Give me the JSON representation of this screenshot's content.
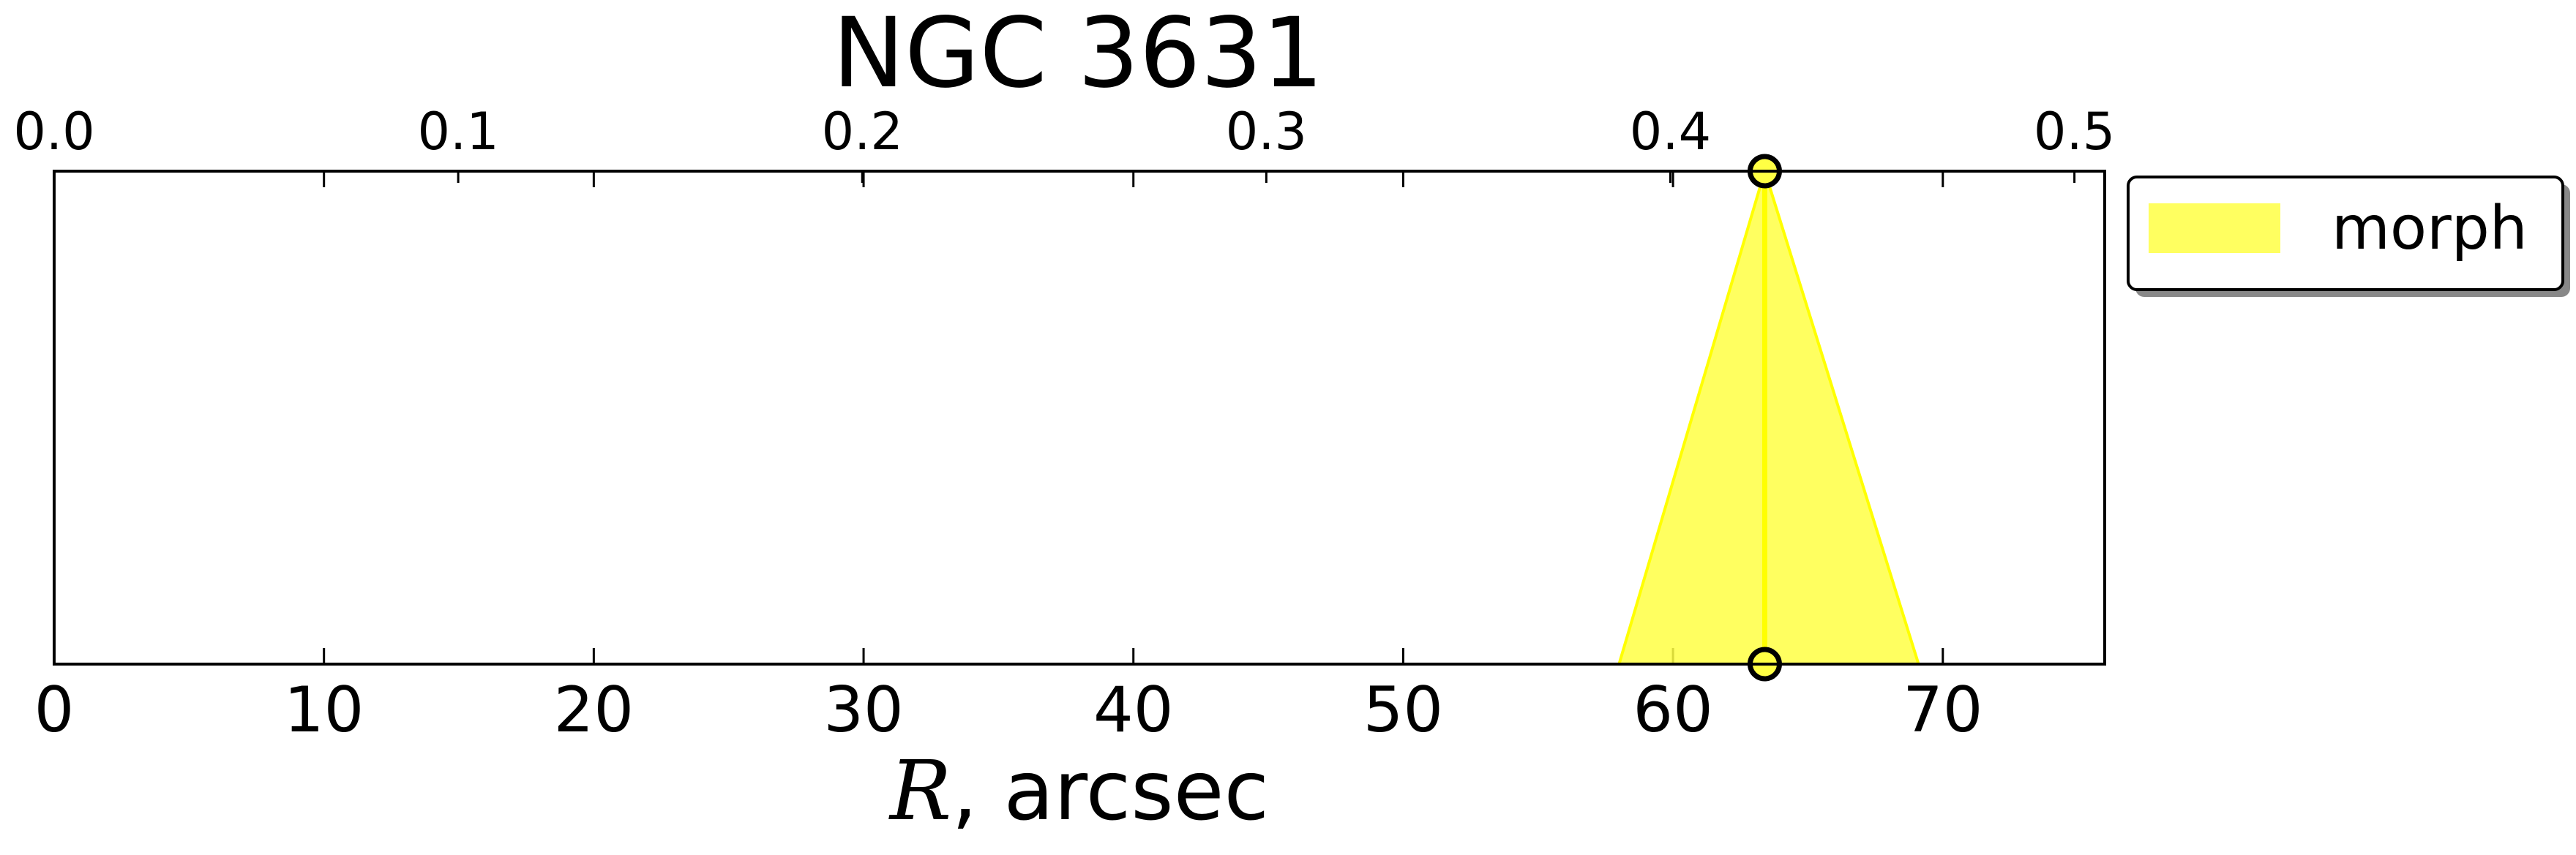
{
  "chart_data": {
    "type": "area",
    "title": "NGC 3631",
    "xlabel_var": "R",
    "xlabel_unit": ", arcsec",
    "xlim": [
      0,
      76
    ],
    "x_ticks": [
      0,
      10,
      20,
      30,
      40,
      50,
      60,
      70
    ],
    "x_tick_labels": [
      "0",
      "10",
      "20",
      "30",
      "40",
      "50",
      "60",
      "70"
    ],
    "top_xlim": [
      0.0,
      0.5075
    ],
    "top_ticks": [
      0.0,
      0.1,
      0.2,
      0.3,
      0.4,
      0.5
    ],
    "top_tick_labels": [
      "0.0",
      "0.1",
      "0.2",
      "0.3",
      "0.4",
      "0.5"
    ],
    "ylim": [
      0,
      1
    ],
    "y_ticks_shown": false,
    "grid": false,
    "legend_position": "outside-right-top",
    "series": [
      {
        "name": "morph",
        "color": "#ffff00",
        "fill_color": "#ffff44",
        "center": 63.4,
        "lower": 58.0,
        "upper": 69.1,
        "markers": "open-circles-at-center-top-and-bottom"
      }
    ]
  }
}
